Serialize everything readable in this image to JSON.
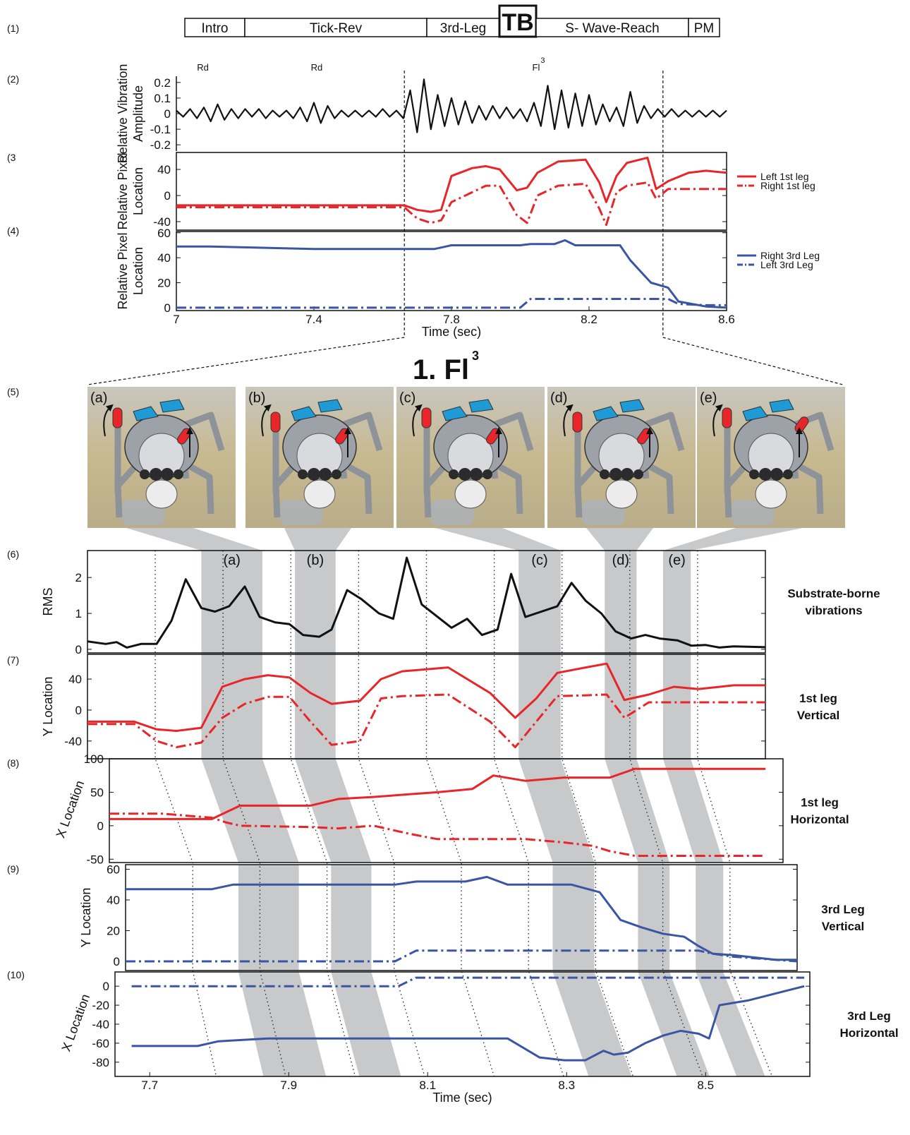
{
  "row_labels": [
    "(1)",
    "(2)",
    "(3",
    "(4)",
    "(5)",
    "(6)",
    "(7)",
    "(8)",
    "(9)",
    "(10)"
  ],
  "segments": [
    "Intro",
    "Tick-Rev",
    "3rd-Leg",
    "TB",
    "S- Wave-Reach",
    "PM"
  ],
  "zoom_window": [
    7.663,
    8.415
  ],
  "zoom_title": {
    "text": "1. Fl",
    "sup": "3"
  },
  "photos": [
    "(a)",
    "(b)",
    "(c)",
    "(d)",
    "(e)"
  ],
  "bands": [
    {
      "label": "(a)",
      "x": [
        7.818,
        7.908
      ]
    },
    {
      "label": "(b)",
      "x": [
        7.956,
        8.016
      ]
    },
    {
      "label": "(c)",
      "x": [
        8.286,
        8.348
      ]
    },
    {
      "label": "(d)",
      "x": [
        8.413,
        8.46
      ]
    },
    {
      "label": "(e)",
      "x": [
        8.499,
        8.54
      ]
    }
  ],
  "dotted_times": [
    7.75,
    7.85,
    7.95,
    8.05,
    8.15,
    8.25,
    8.35,
    8.45,
    8.55
  ],
  "chart_data": [
    {
      "type": "line",
      "ylabel": [
        "Relative Vibration",
        "Amplitude"
      ],
      "xlim": [
        7,
        8.6
      ],
      "ylim": [
        -0.24,
        0.24
      ],
      "yticks": [
        -0.2,
        -0.1,
        0,
        0.1,
        0.2
      ],
      "annotations": [
        {
          "text": "Rd",
          "x": 7.077
        },
        {
          "text": "Rd",
          "x": 7.408
        },
        {
          "text": "Fl",
          "sup": "3",
          "x": 8.046
        }
      ],
      "x": [
        7,
        7.02,
        7.04,
        7.06,
        7.08,
        7.1,
        7.12,
        7.14,
        7.16,
        7.18,
        7.2,
        7.22,
        7.24,
        7.26,
        7.28,
        7.3,
        7.32,
        7.34,
        7.36,
        7.38,
        7.4,
        7.42,
        7.44,
        7.46,
        7.48,
        7.5,
        7.52,
        7.54,
        7.56,
        7.58,
        7.6,
        7.62,
        7.64,
        7.66,
        7.68,
        7.7,
        7.72,
        7.74,
        7.76,
        7.78,
        7.8,
        7.82,
        7.84,
        7.86,
        7.88,
        7.9,
        7.92,
        7.94,
        7.96,
        7.98,
        8,
        8.02,
        8.04,
        8.06,
        8.08,
        8.1,
        8.12,
        8.14,
        8.16,
        8.18,
        8.2,
        8.22,
        8.24,
        8.26,
        8.28,
        8.3,
        8.32,
        8.34,
        8.36,
        8.38,
        8.4,
        8.42,
        8.44,
        8.46,
        8.48,
        8.5,
        8.52,
        8.54,
        8.56,
        8.58,
        8.6
      ],
      "series": [
        {
          "color": "#111111",
          "style": "solid",
          "values": [
            0.02,
            -0.02,
            0.03,
            -0.03,
            0.04,
            -0.05,
            0.06,
            -0.04,
            0.03,
            -0.03,
            0.03,
            -0.02,
            0.03,
            -0.03,
            0.02,
            -0.02,
            0.02,
            -0.03,
            0.04,
            -0.05,
            0.07,
            -0.06,
            0.05,
            -0.03,
            0.02,
            -0.02,
            0.02,
            -0.02,
            0.02,
            -0.02,
            0.03,
            -0.02,
            0.02,
            -0.03,
            0.15,
            -0.12,
            0.22,
            -0.1,
            0.12,
            -0.08,
            0.1,
            -0.07,
            0.08,
            -0.06,
            0.05,
            -0.04,
            0.05,
            -0.03,
            0.04,
            -0.03,
            0.03,
            -0.05,
            0.07,
            -0.08,
            0.18,
            -0.1,
            0.15,
            -0.09,
            0.13,
            -0.08,
            0.12,
            -0.07,
            0.06,
            -0.05,
            0.04,
            -0.08,
            0.14,
            -0.06,
            0.05,
            -0.03,
            0.03,
            -0.02,
            0.03,
            -0.02,
            0.02,
            -0.02,
            0.02,
            -0.02,
            0.02,
            -0.02,
            0.02
          ]
        }
      ]
    },
    {
      "type": "line",
      "ylabel": [
        "Relative Pixel",
        "Location"
      ],
      "legend": "right",
      "xlim": [
        7,
        8.6
      ],
      "ylim": [
        -53,
        66
      ],
      "yticks": [
        -40,
        0,
        40
      ],
      "x": [
        7,
        7.663,
        7.7,
        7.74,
        7.77,
        7.8,
        7.86,
        7.9,
        7.94,
        7.99,
        8.02,
        8.05,
        8.11,
        8.19,
        8.23,
        8.25,
        8.28,
        8.31,
        8.37,
        8.395,
        8.43,
        8.49,
        8.54,
        8.6
      ],
      "series": [
        {
          "name": "Left  1st leg",
          "color": "#e8262a",
          "style": "solid",
          "values": [
            -15,
            -15,
            -22,
            -25,
            -22,
            30,
            42,
            45,
            40,
            8,
            12,
            35,
            52,
            55,
            20,
            -10,
            30,
            50,
            58,
            10,
            22,
            35,
            38,
            35
          ]
        },
        {
          "name": "Right 1st leg",
          "color": "#e8262a",
          "style": "dashdot",
          "values": [
            -18,
            -18,
            -35,
            -42,
            -38,
            -10,
            5,
            15,
            15,
            -30,
            -42,
            0,
            15,
            18,
            -20,
            -45,
            5,
            15,
            20,
            -5,
            10,
            10,
            10,
            10
          ]
        }
      ]
    },
    {
      "type": "line",
      "ylabel": [
        "Relative Pixel",
        "Location"
      ],
      "legend": "right",
      "xlabel": "Time (sec)",
      "xlim": [
        7,
        8.6
      ],
      "ylim": [
        -2.3,
        61
      ],
      "yticks": [
        0,
        20,
        40,
        60
      ],
      "xticks": [
        7,
        7.4,
        7.8,
        8.2,
        8.6
      ],
      "x": [
        7,
        7.1,
        7.4,
        7.75,
        7.8,
        8,
        8.03,
        8.1,
        8.13,
        8.16,
        8.29,
        8.32,
        8.36,
        8.38,
        8.43,
        8.46,
        8.54,
        8.6
      ],
      "series": [
        {
          "name": "Right 3rd Leg",
          "color": "#3a55a4",
          "style": "solid",
          "values": [
            49,
            49,
            47,
            47,
            50,
            50,
            51,
            51,
            54,
            50,
            50,
            38,
            26,
            20,
            16,
            5,
            1,
            0
          ]
        },
        {
          "name": "Left 3rd Leg",
          "color": "#3a55a4",
          "style": "dashdot",
          "values": [
            0,
            0,
            0,
            0,
            0,
            0,
            7,
            7,
            7,
            7,
            7,
            7,
            7,
            7,
            7,
            3,
            2,
            2
          ]
        }
      ]
    },
    {
      "type": "line",
      "ylabel": "RMS",
      "side_label": [
        "Substrate-borne",
        "vibrations"
      ],
      "xlim": [
        7.65,
        8.65
      ],
      "ylim": [
        -0.1,
        2.75
      ],
      "yticks": [
        0,
        1,
        2
      ],
      "x": [
        7.65,
        7.677,
        7.693,
        7.708,
        7.729,
        7.752,
        7.774,
        7.795,
        7.818,
        7.838,
        7.859,
        7.882,
        7.904,
        7.927,
        7.948,
        7.968,
        7.992,
        8.01,
        8.033,
        8.054,
        8.08,
        8.101,
        8.121,
        8.143,
        8.187,
        8.21,
        8.232,
        8.255,
        8.275,
        8.296,
        8.343,
        8.364,
        8.385,
        8.408,
        8.429,
        8.452,
        8.473,
        8.494,
        8.52,
        8.541,
        8.562,
        8.582,
        8.603,
        8.65
      ],
      "series": [
        {
          "color": "#111111",
          "style": "solid",
          "values": [
            0.22,
            0.15,
            0.2,
            0.05,
            0.15,
            0.15,
            0.8,
            1.95,
            1.15,
            1.05,
            1.2,
            1.75,
            0.9,
            0.75,
            0.7,
            0.4,
            0.35,
            0.55,
            1.65,
            1.4,
            1.0,
            0.85,
            2.55,
            1.25,
            0.6,
            0.85,
            0.4,
            0.55,
            2.1,
            0.9,
            1.2,
            1.85,
            1.35,
            1.0,
            0.5,
            0.3,
            0.4,
            0.3,
            0.25,
            0.1,
            0.12,
            0.05,
            0.08,
            0.06
          ]
        }
      ]
    },
    {
      "type": "line",
      "ylabel": "Y Location",
      "side_label": [
        "1st leg",
        "Vertical"
      ],
      "xlim": [
        7.65,
        8.65
      ],
      "ylim": [
        -63,
        72
      ],
      "yticks": [
        -40,
        0,
        40
      ],
      "x": [
        7.65,
        7.719,
        7.752,
        7.781,
        7.818,
        7.849,
        7.882,
        7.916,
        7.948,
        7.979,
        8.01,
        8.052,
        8.083,
        8.114,
        8.182,
        8.244,
        8.281,
        8.312,
        8.343,
        8.385,
        8.416,
        8.442,
        8.478,
        8.515,
        8.551,
        8.603,
        8.65
      ],
      "series": [
        {
          "color": "#e8262a",
          "style": "solid",
          "values": [
            -15,
            -15,
            -25,
            -27,
            -23,
            30,
            40,
            45,
            42,
            22,
            8,
            12,
            40,
            50,
            55,
            22,
            -10,
            15,
            48,
            55,
            60,
            13,
            20,
            30,
            27,
            32,
            32
          ]
        },
        {
          "color": "#e8262a",
          "style": "dashdot",
          "values": [
            -18,
            -18,
            -40,
            -48,
            -42,
            -10,
            8,
            17,
            17,
            -15,
            -45,
            -40,
            15,
            18,
            20,
            -15,
            -48,
            -15,
            18,
            19,
            20,
            -10,
            10,
            10,
            10,
            10,
            10
          ]
        }
      ]
    },
    {
      "type": "line",
      "ylabel": "X Location",
      "side_label": [
        "1st leg",
        "Horizontal"
      ],
      "xlim": [
        7.65,
        8.65
      ],
      "ylim": [
        -55,
        100
      ],
      "yticks": [
        -50,
        0,
        50,
        100
      ],
      "x": [
        7.65,
        7.729,
        7.802,
        7.823,
        7.844,
        7.948,
        7.99,
        8.042,
        8.095,
        8.137,
        8.189,
        8.22,
        8.268,
        8.325,
        8.367,
        8.393,
        8.43,
        8.624
      ],
      "series": [
        {
          "color": "#e8262a",
          "style": "solid",
          "values": [
            10,
            10,
            10,
            20,
            30,
            30,
            40,
            43,
            47,
            50,
            55,
            75,
            67,
            72,
            72,
            72,
            85,
            85
          ]
        },
        {
          "color": "#e8262a",
          "style": "dashdot",
          "values": [
            18,
            18,
            12,
            5,
            0,
            -2,
            -4,
            0,
            -12,
            -20,
            -20,
            -20,
            -20,
            -25,
            -30,
            -38,
            -45,
            -45
          ]
        }
      ]
    },
    {
      "type": "line",
      "ylabel": "Y Location",
      "side_label": [
        "3rd Leg",
        "Vertical"
      ],
      "xlim": [
        7.65,
        8.65
      ],
      "ylim": [
        -6,
        63
      ],
      "yticks": [
        0,
        20,
        40,
        60
      ],
      "x": [
        7.65,
        7.778,
        7.81,
        8.051,
        8.083,
        8.156,
        8.188,
        8.219,
        8.314,
        8.356,
        8.387,
        8.419,
        8.45,
        8.482,
        8.503,
        8.524,
        8.555,
        8.618,
        8.65
      ],
      "series": [
        {
          "color": "#3a55a4",
          "style": "solid",
          "values": [
            47,
            47,
            50,
            50,
            52,
            52,
            55,
            50,
            50,
            45,
            27,
            22,
            18,
            16,
            10,
            5,
            4,
            1,
            1
          ]
        },
        {
          "color": "#3a55a4",
          "style": "dashdot",
          "values": [
            0,
            0,
            0,
            0,
            7,
            7,
            7,
            7,
            7,
            7,
            7,
            7,
            7,
            7,
            7,
            5,
            3,
            1,
            0
          ]
        }
      ]
    },
    {
      "type": "line",
      "ylabel": "X Location",
      "side_label": [
        "3rd Leg",
        "Horizontal"
      ],
      "xlabel": "Time (sec)",
      "xlim": [
        7.65,
        8.65
      ],
      "ylim": [
        -95,
        15
      ],
      "yticks": [
        -80,
        -60,
        -40,
        -20,
        0
      ],
      "xticks": [
        7.7,
        7.9,
        8.1,
        8.3,
        8.5
      ],
      "x": [
        7.674,
        7.769,
        7.799,
        7.87,
        8.058,
        8.083,
        8.215,
        8.261,
        8.297,
        8.327,
        8.353,
        8.368,
        8.388,
        8.413,
        8.439,
        8.464,
        8.49,
        8.505,
        8.52,
        8.561,
        8.642
      ],
      "series": [
        {
          "color": "#3a55a4",
          "style": "solid",
          "values": [
            -63,
            -63,
            -58,
            -55,
            -55,
            -55,
            -55,
            -75,
            -78,
            -78,
            -68,
            -72,
            -70,
            -60,
            -52,
            -47,
            -50,
            -55,
            -20,
            -15,
            0
          ]
        },
        {
          "color": "#3a55a4",
          "style": "dashdot",
          "values": [
            0,
            0,
            0,
            0,
            0,
            9,
            9,
            9,
            9,
            9,
            9,
            9,
            9,
            9,
            9,
            9,
            9,
            9,
            9,
            9,
            9
          ]
        }
      ]
    }
  ]
}
